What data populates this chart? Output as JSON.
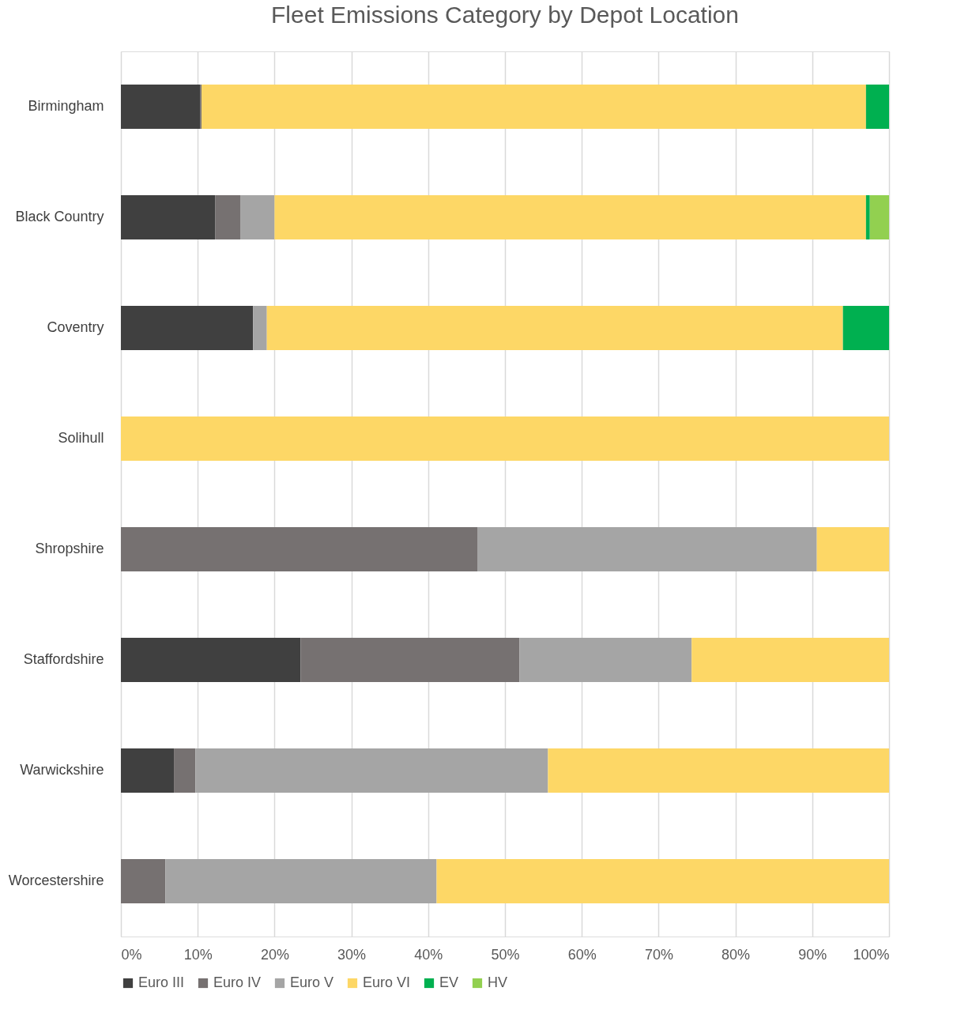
{
  "chart_data": {
    "type": "bar",
    "orientation": "horizontal",
    "stacked": true,
    "title": "Fleet Emissions Category by Depot Location",
    "categories": [
      "Birmingham",
      "Black Country",
      "Coventry",
      "Solihull",
      "Shropshire",
      "Staffordshire",
      "Warwickshire",
      "Worcestershire"
    ],
    "series": [
      {
        "name": "Euro III",
        "color": "#404040",
        "values": [
          10.3,
          12.3,
          17.2,
          0,
          0,
          23.4,
          6.9,
          0
        ]
      },
      {
        "name": "Euro IV",
        "color": "#767171",
        "values": [
          0.2,
          3.3,
          0,
          0,
          46.4,
          28.5,
          2.8,
          5.8
        ]
      },
      {
        "name": "Euro V",
        "color": "#a5a5a5",
        "values": [
          0,
          4.4,
          1.8,
          0,
          44.2,
          22.4,
          45.9,
          35.3
        ]
      },
      {
        "name": "Euro VI",
        "color": "#fdd766",
        "values": [
          86.5,
          77.0,
          75.0,
          100,
          9.4,
          25.7,
          44.4,
          58.9
        ]
      },
      {
        "name": "EV",
        "color": "#00b050",
        "values": [
          3.0,
          0.5,
          6.0,
          0,
          0,
          0,
          0,
          0
        ]
      },
      {
        "name": "HV",
        "color": "#92d050",
        "values": [
          0,
          2.5,
          0,
          0,
          0,
          0,
          0,
          0
        ]
      }
    ],
    "xlim": [
      0,
      100
    ],
    "xticks": [
      {
        "value": 0,
        "label": "0%"
      },
      {
        "value": 10,
        "label": "10%"
      },
      {
        "value": 20,
        "label": "20%"
      },
      {
        "value": 30,
        "label": "30%"
      },
      {
        "value": 40,
        "label": "40%"
      },
      {
        "value": 50,
        "label": "50%"
      },
      {
        "value": 60,
        "label": "60%"
      },
      {
        "value": 70,
        "label": "70%"
      },
      {
        "value": 80,
        "label": "80%"
      },
      {
        "value": 90,
        "label": "90%"
      },
      {
        "value": 100,
        "label": "100%"
      }
    ],
    "grid": "x",
    "legend": "bottom"
  }
}
